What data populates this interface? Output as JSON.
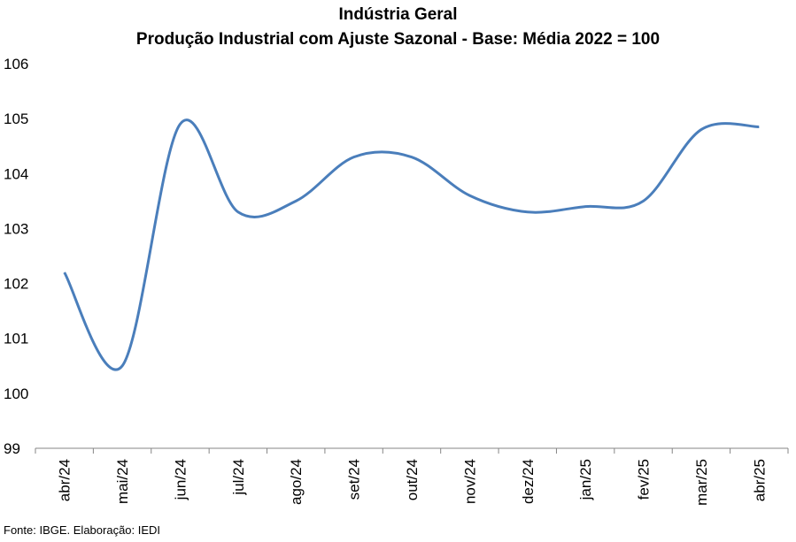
{
  "chart_data": {
    "type": "line",
    "title": "Indústria Geral",
    "subtitle": "Produção Industrial com Ajuste Sazonal - Base: Média 2022 = 100",
    "xlabel": "",
    "ylabel": "",
    "categories": [
      "abr/24",
      "mai/24",
      "jun/24",
      "jul/24",
      "ago/24",
      "set/24",
      "out/24",
      "nov/24",
      "dez/24",
      "jan/25",
      "fev/25",
      "mar/25",
      "abr/25"
    ],
    "series": [
      {
        "values": [
          102.2,
          100.5,
          104.9,
          103.3,
          103.5,
          104.3,
          104.3,
          103.6,
          103.3,
          103.4,
          103.5,
          104.8,
          104.85
        ],
        "color": "#4a7ebb"
      }
    ],
    "ylim": [
      99,
      106
    ],
    "yticks": [
      99,
      100,
      101,
      102,
      103,
      104,
      105,
      106
    ],
    "grid": false,
    "legend": "none",
    "smooth": true
  },
  "source": "Fonte: IBGE. Elaboração: IEDI"
}
